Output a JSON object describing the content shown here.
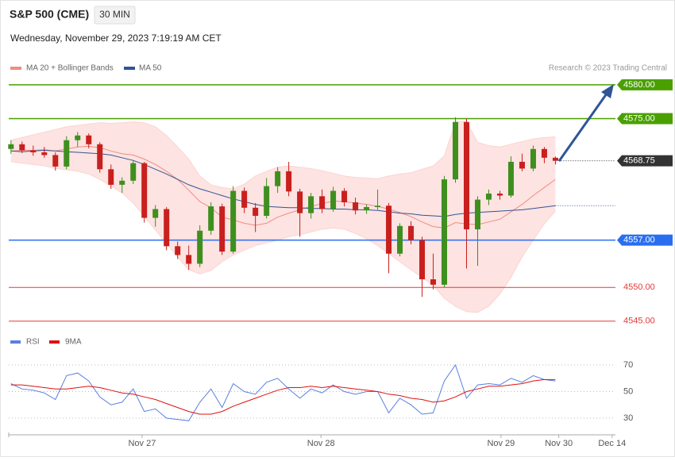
{
  "header": {
    "title": "S&P 500 (CME)",
    "interval": "30 MIN",
    "timestamp": "Wednesday, November 29, 2023 7:19:19 AM CET",
    "copyright": "Research © 2023 Trading Central"
  },
  "chart_data": [
    {
      "type": "candlestick",
      "up_color": "#3f8f1f",
      "down_color": "#c8201e",
      "ylim": [
        4543.8,
        4581.4
      ],
      "candles": [
        [
          4570.5,
          4571.8,
          4569.8,
          4571.2
        ],
        [
          4571.2,
          4571.6,
          4569.9,
          4570.3
        ],
        [
          4570.3,
          4571.0,
          4569.5,
          4570.0
        ],
        [
          4570.0,
          4570.8,
          4569.2,
          4569.6
        ],
        [
          4569.6,
          4570.0,
          4567.3,
          4567.9
        ],
        [
          4567.9,
          4572.4,
          4567.5,
          4571.8
        ],
        [
          4571.8,
          4573.0,
          4570.8,
          4572.5
        ],
        [
          4572.5,
          4572.8,
          4570.6,
          4571.2
        ],
        [
          4571.2,
          4571.5,
          4567.0,
          4567.5
        ],
        [
          4567.5,
          4568.2,
          4564.6,
          4565.2
        ],
        [
          4565.2,
          4566.3,
          4564.0,
          4565.8
        ],
        [
          4565.8,
          4568.8,
          4565.3,
          4568.4
        ],
        [
          4568.4,
          4568.6,
          4559.6,
          4560.3
        ],
        [
          4560.3,
          4562.2,
          4559.0,
          4561.6
        ],
        [
          4561.6,
          4561.9,
          4555.5,
          4556.1
        ],
        [
          4556.1,
          4556.8,
          4554.2,
          4554.8
        ],
        [
          4554.8,
          4556.2,
          4552.6,
          4553.5
        ],
        [
          4553.5,
          4559.2,
          4553.0,
          4558.4
        ],
        [
          4558.4,
          4562.6,
          4557.8,
          4562.0
        ],
        [
          4562.0,
          4562.4,
          4554.8,
          4555.3
        ],
        [
          4555.3,
          4565.0,
          4555.0,
          4564.3
        ],
        [
          4564.3,
          4564.8,
          4561.0,
          4561.8
        ],
        [
          4561.8,
          4562.5,
          4558.2,
          4560.6
        ],
        [
          4560.6,
          4566.2,
          4560.2,
          4565.0
        ],
        [
          4565.0,
          4567.8,
          4564.0,
          4567.2
        ],
        [
          4567.2,
          4568.6,
          4563.5,
          4564.2
        ],
        [
          4564.2,
          4564.6,
          4557.5,
          4561.0
        ],
        [
          4561.0,
          4564.0,
          4560.2,
          4563.5
        ],
        [
          4563.5,
          4564.5,
          4561.0,
          4561.6
        ],
        [
          4561.6,
          4564.9,
          4561.2,
          4564.3
        ],
        [
          4564.3,
          4564.7,
          4562.0,
          4562.6
        ],
        [
          4562.6,
          4563.3,
          4560.8,
          4561.4
        ],
        [
          4561.4,
          4562.3,
          4560.9,
          4561.9
        ],
        [
          4561.9,
          4564.5,
          4561.5,
          4562.1
        ],
        [
          4562.1,
          4562.5,
          4552.1,
          4555.0
        ],
        [
          4555.0,
          4559.5,
          4554.6,
          4559.1
        ],
        [
          4559.1,
          4559.8,
          4556.4,
          4557.0
        ],
        [
          4557.0,
          4557.5,
          4548.6,
          4551.2
        ],
        [
          4551.2,
          4555.0,
          4549.7,
          4550.4
        ],
        [
          4550.4,
          4566.5,
          4550.0,
          4566.0
        ],
        [
          4566.0,
          4575.2,
          4565.5,
          4574.5
        ],
        [
          4574.5,
          4575.0,
          4552.8,
          4558.6
        ],
        [
          4558.6,
          4563.5,
          4553.2,
          4563.0
        ],
        [
          4563.0,
          4564.5,
          4562.2,
          4563.9
        ],
        [
          4563.9,
          4564.3,
          4563.0,
          4563.6
        ],
        [
          4563.6,
          4569.4,
          4563.3,
          4568.6
        ],
        [
          4568.6,
          4569.8,
          4567.2,
          4567.6
        ],
        [
          4567.6,
          4571.0,
          4567.2,
          4570.5
        ],
        [
          4570.5,
          4570.8,
          4568.4,
          4569.2
        ],
        [
          4569.2,
          4569.4,
          4568.2,
          4568.75
        ]
      ],
      "bollinger": {
        "name": "MA 20 + Bollinger Bands",
        "color": "#f08c84",
        "fill": "#fde3e1",
        "upper": [
          4571.8,
          4572.2,
          4572.6,
          4573.0,
          4573.4,
          4573.8,
          4574.0,
          4574.2,
          4574.4,
          4574.3,
          4574.4,
          4574.5,
          4574.4,
          4573.8,
          4572.5,
          4570.8,
          4569.0,
          4566.5,
          4565.2,
          4564.8,
          4564.6,
          4565.3,
          4566.5,
          4567.2,
          4567.8,
          4568.0,
          4567.8,
          4567.6,
          4567.3,
          4566.9,
          4566.5,
          4566.3,
          4566.2,
          4566.1,
          4566.5,
          4566.8,
          4567.0,
          4567.5,
          4568.0,
          4569.5,
          4574.5,
          4574.6,
          4571.5,
          4571.0,
          4570.8,
          4571.2,
          4571.6,
          4572.0,
          4572.2,
          4572.3
        ],
        "lower": [
          4568.6,
          4568.4,
          4568.2,
          4568.0,
          4567.6,
          4567.4,
          4567.2,
          4566.8,
          4566.0,
          4565.0,
          4564.0,
          4562.5,
          4560.5,
          4558.5,
          4556.5,
          4554.5,
          4552.6,
          4552.0,
          4552.5,
          4553.8,
          4554.8,
          4555.5,
          4556.2,
          4556.6,
          4557.0,
          4557.5,
          4557.8,
          4558.2,
          4558.6,
          4558.8,
          4558.6,
          4558.0,
          4557.2,
          4556.2,
          4555.0,
          4553.8,
          4552.6,
          4551.5,
          4550.3,
          4548.4,
          4547.2,
          4546.4,
          4546.3,
          4547.2,
          4549.0,
          4551.5,
          4554.5,
          4557.0,
          4559.4,
          4561.3
        ],
        "values": [
          4570.2,
          4570.3,
          4570.3,
          4570.4,
          4570.2,
          4570.5,
          4570.8,
          4570.9,
          4570.7,
          4570.2,
          4569.8,
          4569.6,
          4569.0,
          4568.2,
          4567.2,
          4566.0,
          4564.4,
          4562.7,
          4561.8,
          4560.4,
          4560.0,
          4559.5,
          4559.2,
          4559.5,
          4560.4,
          4561.0,
          4561.5,
          4562.0,
          4562.4,
          4562.8,
          4562.7,
          4562.5,
          4562.3,
          4562.0,
          4561.6,
          4561.1,
          4560.5,
          4559.7,
          4559.0,
          4558.8,
          4559.6,
          4559.4,
          4559.3,
          4559.7,
          4560.1,
          4561.2,
          4562.3,
          4563.6,
          4564.8,
          4566.0
        ]
      },
      "ma50": {
        "name": "MA 50",
        "color": "#2f5597",
        "values": [
          4570.2,
          4570.1,
          4570.2,
          4570.3,
          4570.2,
          4570.1,
          4570.0,
          4569.9,
          4569.8,
          4569.6,
          4569.2,
          4568.8,
          4568.2,
          4567.5,
          4566.8,
          4566.0,
          4565.2,
          4564.6,
          4564.1,
          4563.6,
          4563.1,
          4562.7,
          4562.3,
          4562.0,
          4561.9,
          4561.8,
          4561.8,
          4561.7,
          4561.7,
          4561.6,
          4561.6,
          4561.5,
          4561.5,
          4561.4,
          4561.2,
          4561.0,
          4560.9,
          4560.7,
          4560.6,
          4560.5,
          4560.8,
          4561.0,
          4561.1,
          4561.2,
          4561.3,
          4561.4,
          4561.5,
          4561.7,
          4561.9,
          4562.1
        ]
      },
      "levels": [
        {
          "value": 4580,
          "label": "4580.00",
          "color": "#4aa000",
          "style": "box"
        },
        {
          "value": 4575,
          "label": "4575.00",
          "color": "#4aa000",
          "style": "box"
        },
        {
          "value": 4557,
          "label": "4557.00",
          "color": "#2a6ef0",
          "style": "box"
        },
        {
          "value": 4550,
          "label": "4550.00",
          "color": "#e23a3a",
          "style": "text"
        },
        {
          "value": 4545,
          "label": "4545.00",
          "color": "#e23a3a",
          "style": "text"
        }
      ],
      "last_price": 4568.75,
      "last_color": "#333333"
    },
    {
      "type": "line",
      "ylim": [
        26.4,
        74.2
      ],
      "yticks": [
        30,
        50,
        70
      ],
      "grid": true,
      "xlim": [
        -0.2,
        54.4
      ],
      "xticks": [
        {
          "value": 11.8,
          "label": "Nov 27"
        },
        {
          "value": 27.9,
          "label": "Nov 28"
        },
        {
          "value": 44.1,
          "label": "Nov 29"
        },
        {
          "value": 49.3,
          "label": "Nov 30"
        },
        {
          "value": 54.1,
          "label": "Dec 14"
        }
      ],
      "series": [
        {
          "name": "RSI",
          "color": "#5b7fe0",
          "values": [
            56,
            52,
            51,
            49,
            44,
            62,
            64,
            58,
            46,
            40,
            42,
            52,
            35,
            37,
            30,
            29,
            28,
            42,
            52,
            38,
            56,
            50,
            48,
            57,
            60,
            52,
            45,
            52,
            49,
            55,
            50,
            48,
            50,
            50,
            34,
            45,
            40,
            33,
            34,
            58,
            70,
            45,
            55,
            56,
            55,
            60,
            57,
            62,
            59,
            58
          ]
        },
        {
          "name": "9MA",
          "color": "#e01010",
          "values": [
            55,
            55,
            54,
            53,
            52,
            52,
            53,
            54,
            53,
            51,
            49,
            48,
            46,
            44,
            41,
            38,
            35,
            33,
            33,
            35,
            39,
            42,
            45,
            48,
            51,
            53,
            53,
            54,
            53,
            54,
            53,
            52,
            51,
            50,
            48,
            47,
            45,
            44,
            42,
            43,
            46,
            50,
            52,
            54,
            54,
            55,
            56,
            58,
            59,
            59
          ]
        }
      ]
    }
  ]
}
